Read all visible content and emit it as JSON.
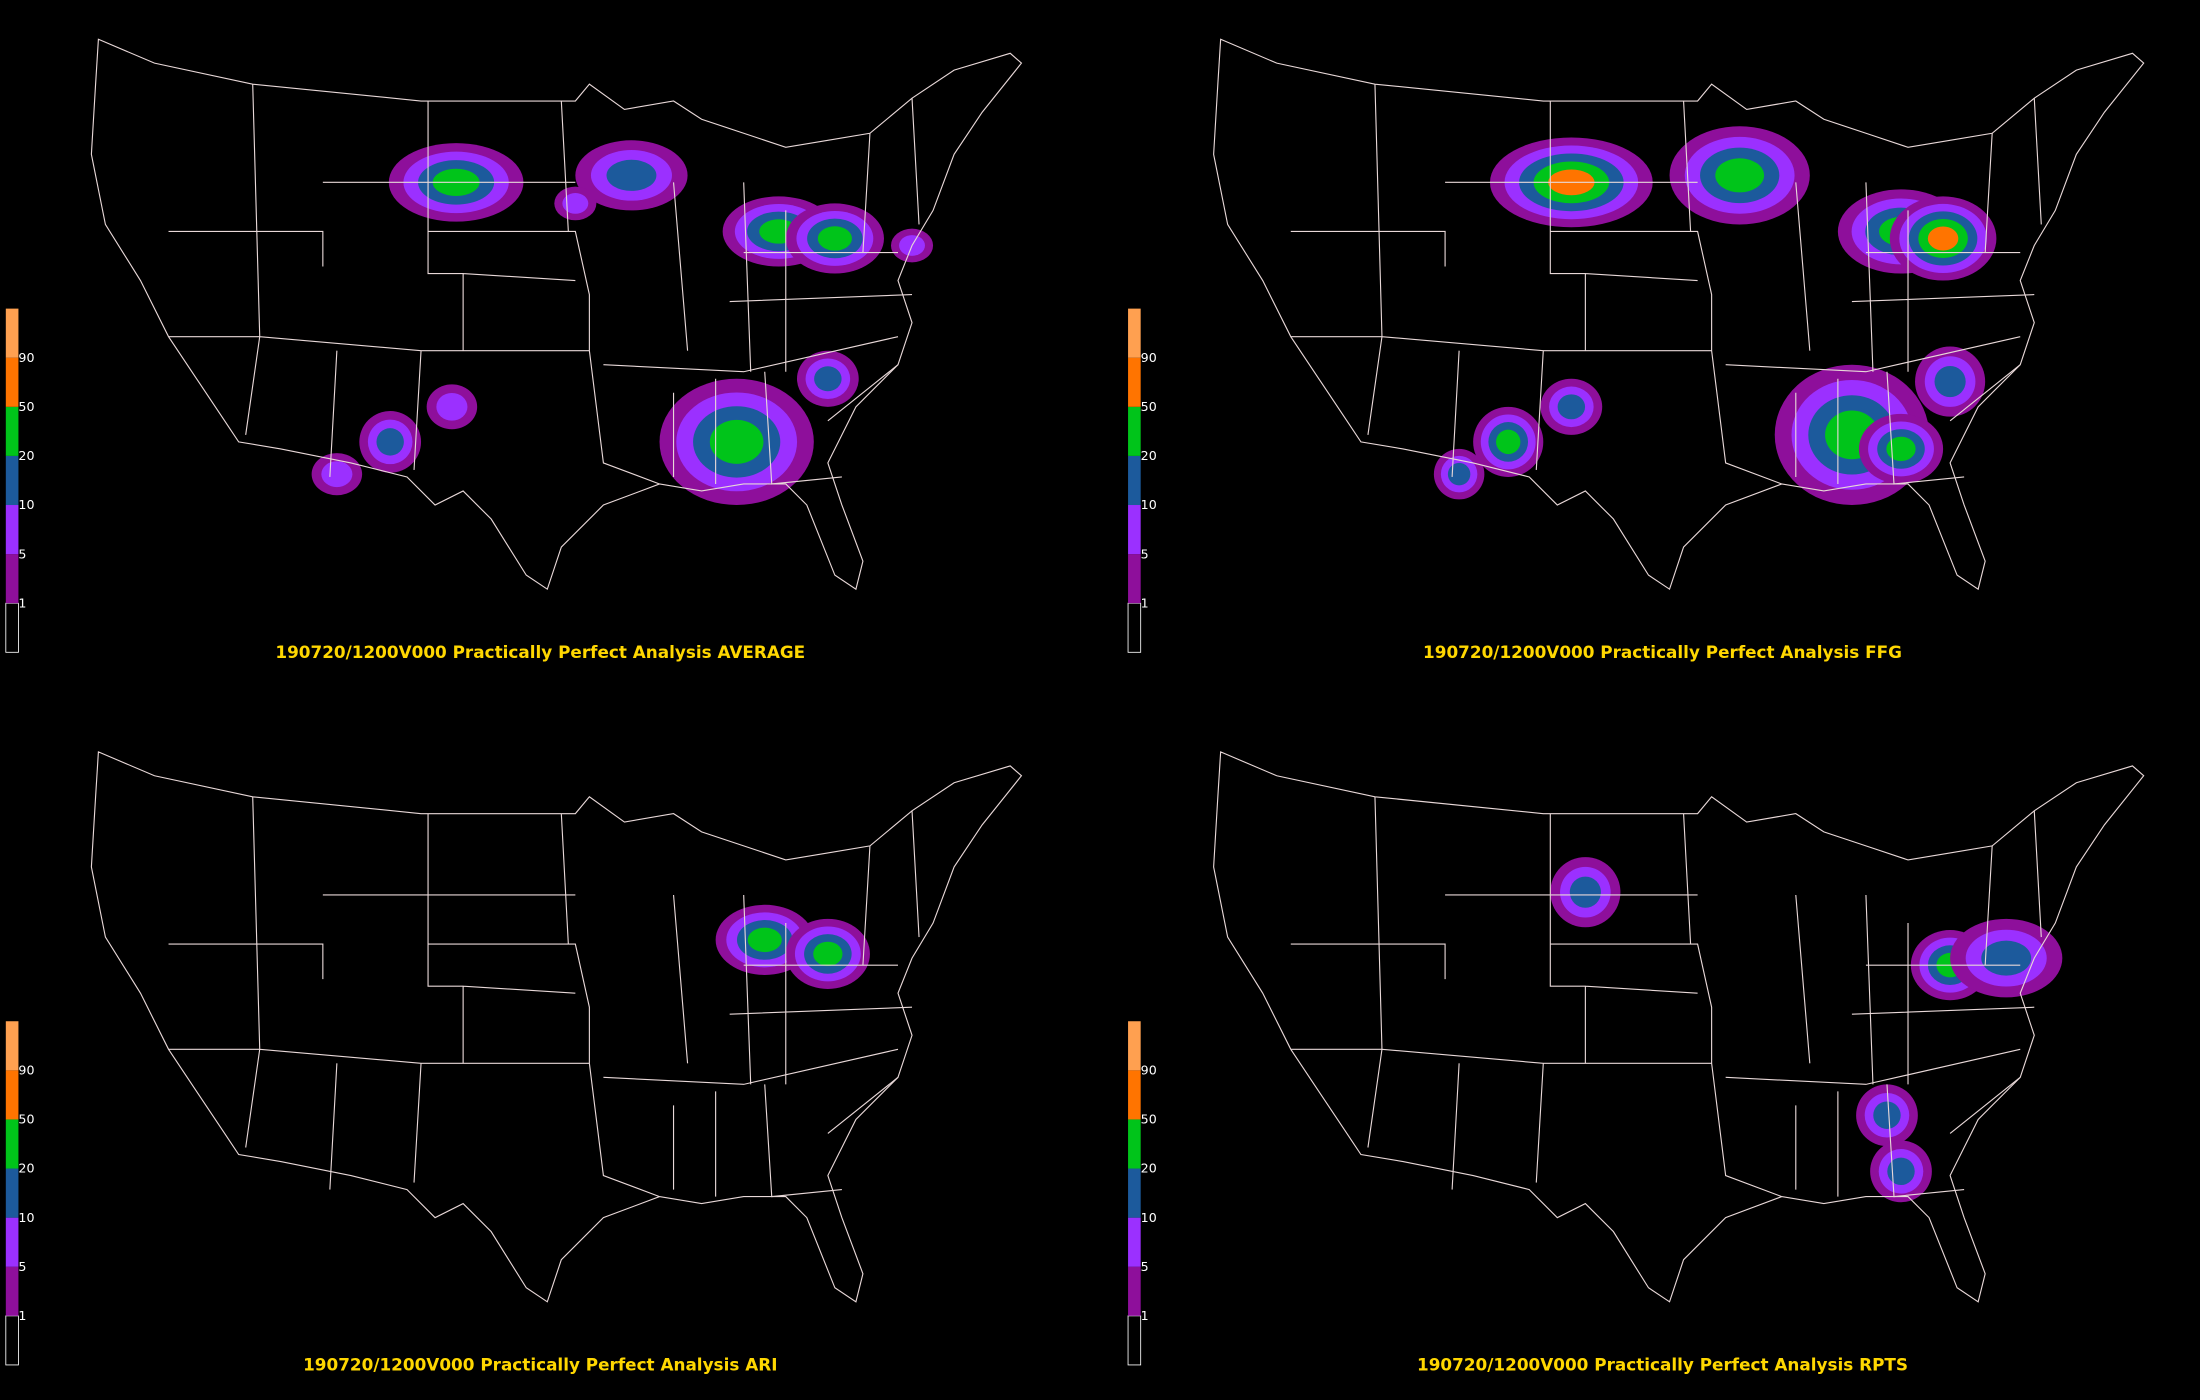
{
  "panels": [
    {
      "title": "190720/1200V000 Practically Perfect Analysis AVERAGE"
    },
    {
      "title": "190720/1200V000 Practically Perfect Analysis FFG"
    },
    {
      "title": "190720/1200V000 Practically Perfect Analysis ARI"
    },
    {
      "title": "190720/1200V000 Practically Perfect Analysis RPTS"
    }
  ],
  "legend": {
    "labels": [
      "1",
      "5",
      "10",
      "20",
      "50",
      "90"
    ],
    "colors": [
      "#8e0f9b",
      "#9b30ff",
      "#1c5a9c",
      "#00c41a",
      "#ff7400",
      "#ffa050"
    ]
  }
}
